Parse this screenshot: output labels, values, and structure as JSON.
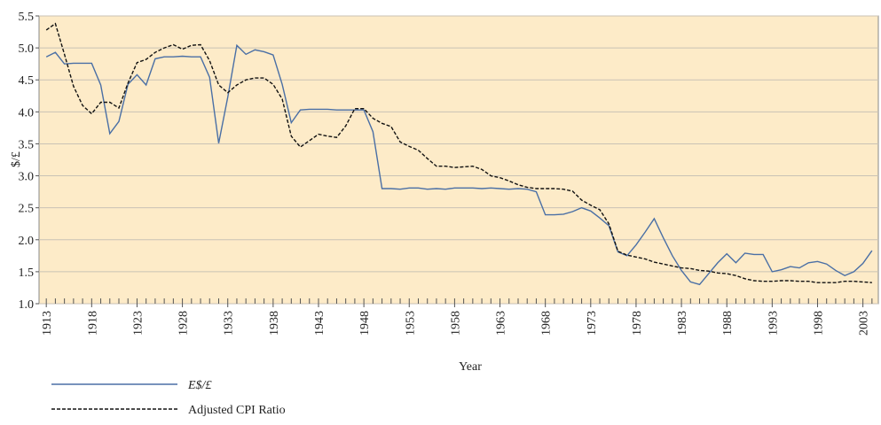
{
  "chart_data": {
    "type": "line",
    "xlabel": "Year",
    "ylabel": "$/£",
    "x": [
      1913,
      1914,
      1915,
      1916,
      1917,
      1918,
      1919,
      1920,
      1921,
      1922,
      1923,
      1924,
      1925,
      1926,
      1927,
      1928,
      1929,
      1930,
      1931,
      1932,
      1933,
      1934,
      1935,
      1936,
      1937,
      1938,
      1939,
      1940,
      1941,
      1942,
      1943,
      1944,
      1945,
      1946,
      1947,
      1948,
      1949,
      1950,
      1951,
      1952,
      1953,
      1954,
      1955,
      1956,
      1957,
      1958,
      1959,
      1960,
      1961,
      1962,
      1963,
      1964,
      1965,
      1966,
      1967,
      1968,
      1969,
      1970,
      1971,
      1972,
      1973,
      1974,
      1975,
      1976,
      1977,
      1978,
      1979,
      1980,
      1981,
      1982,
      1983,
      1984,
      1985,
      1986,
      1987,
      1988,
      1989,
      1990,
      1991,
      1992,
      1993,
      1994,
      1995,
      1996,
      1997,
      1998,
      1999,
      2000,
      2001,
      2002,
      2003,
      2004
    ],
    "series": [
      {
        "name": "E$/£",
        "color": "#4a6fa5",
        "style": "solid",
        "values": [
          4.86,
          4.93,
          4.75,
          4.76,
          4.76,
          4.76,
          4.42,
          3.66,
          3.85,
          4.43,
          4.58,
          4.42,
          4.83,
          4.86,
          4.86,
          4.87,
          4.86,
          4.86,
          4.54,
          3.51,
          4.23,
          5.04,
          4.9,
          4.97,
          4.94,
          4.89,
          4.43,
          3.83,
          4.03,
          4.04,
          4.04,
          4.04,
          4.03,
          4.03,
          4.03,
          4.03,
          3.69,
          2.8,
          2.8,
          2.79,
          2.81,
          2.81,
          2.79,
          2.8,
          2.79,
          2.81,
          2.81,
          2.81,
          2.8,
          2.81,
          2.8,
          2.79,
          2.8,
          2.79,
          2.75,
          2.39,
          2.39,
          2.4,
          2.44,
          2.5,
          2.45,
          2.34,
          2.22,
          1.81,
          1.75,
          1.92,
          2.12,
          2.33,
          2.03,
          1.75,
          1.52,
          1.34,
          1.3,
          1.47,
          1.64,
          1.78,
          1.64,
          1.79,
          1.77,
          1.77,
          1.5,
          1.53,
          1.58,
          1.56,
          1.64,
          1.66,
          1.62,
          1.52,
          1.44,
          1.5,
          1.63,
          1.83
        ]
      },
      {
        "name": "Adjusted CPI Ratio",
        "color": "#111111",
        "style": "dashed",
        "values": [
          5.28,
          5.38,
          4.9,
          4.4,
          4.1,
          3.97,
          4.15,
          4.15,
          4.06,
          4.45,
          4.77,
          4.82,
          4.93,
          5.0,
          5.05,
          4.98,
          5.04,
          5.05,
          4.8,
          4.42,
          4.3,
          4.42,
          4.5,
          4.53,
          4.53,
          4.43,
          4.2,
          3.62,
          3.45,
          3.55,
          3.65,
          3.62,
          3.6,
          3.78,
          4.05,
          4.05,
          3.9,
          3.82,
          3.77,
          3.53,
          3.46,
          3.4,
          3.27,
          3.15,
          3.15,
          3.13,
          3.14,
          3.15,
          3.1,
          3.0,
          2.97,
          2.92,
          2.86,
          2.82,
          2.8,
          2.8,
          2.8,
          2.79,
          2.76,
          2.62,
          2.54,
          2.47,
          2.25,
          1.82,
          1.76,
          1.73,
          1.7,
          1.65,
          1.62,
          1.59,
          1.56,
          1.55,
          1.52,
          1.51,
          1.48,
          1.47,
          1.44,
          1.39,
          1.36,
          1.35,
          1.35,
          1.36,
          1.36,
          1.35,
          1.35,
          1.33,
          1.33,
          1.33,
          1.35,
          1.35,
          1.34,
          1.33
        ]
      }
    ],
    "xlim": [
      1912.2,
      2004.7
    ],
    "xticks": [
      1913,
      1918,
      1923,
      1928,
      1933,
      1938,
      1943,
      1948,
      1953,
      1958,
      1963,
      1968,
      1973,
      1978,
      1983,
      1988,
      1993,
      1998,
      2003
    ],
    "ylim": [
      1.0,
      5.5
    ],
    "yticks": [
      {
        "value": 1,
        "label": "1.0"
      },
      1.5,
      {
        "value": 2,
        "label": "2.0"
      },
      2.5,
      {
        "value": 3,
        "label": "3.0"
      },
      3.5,
      {
        "value": 4,
        "label": "4.0"
      },
      4.5,
      {
        "value": 5,
        "label": "5.0"
      },
      5.5
    ],
    "grid": true,
    "background": "#fdebc8"
  }
}
